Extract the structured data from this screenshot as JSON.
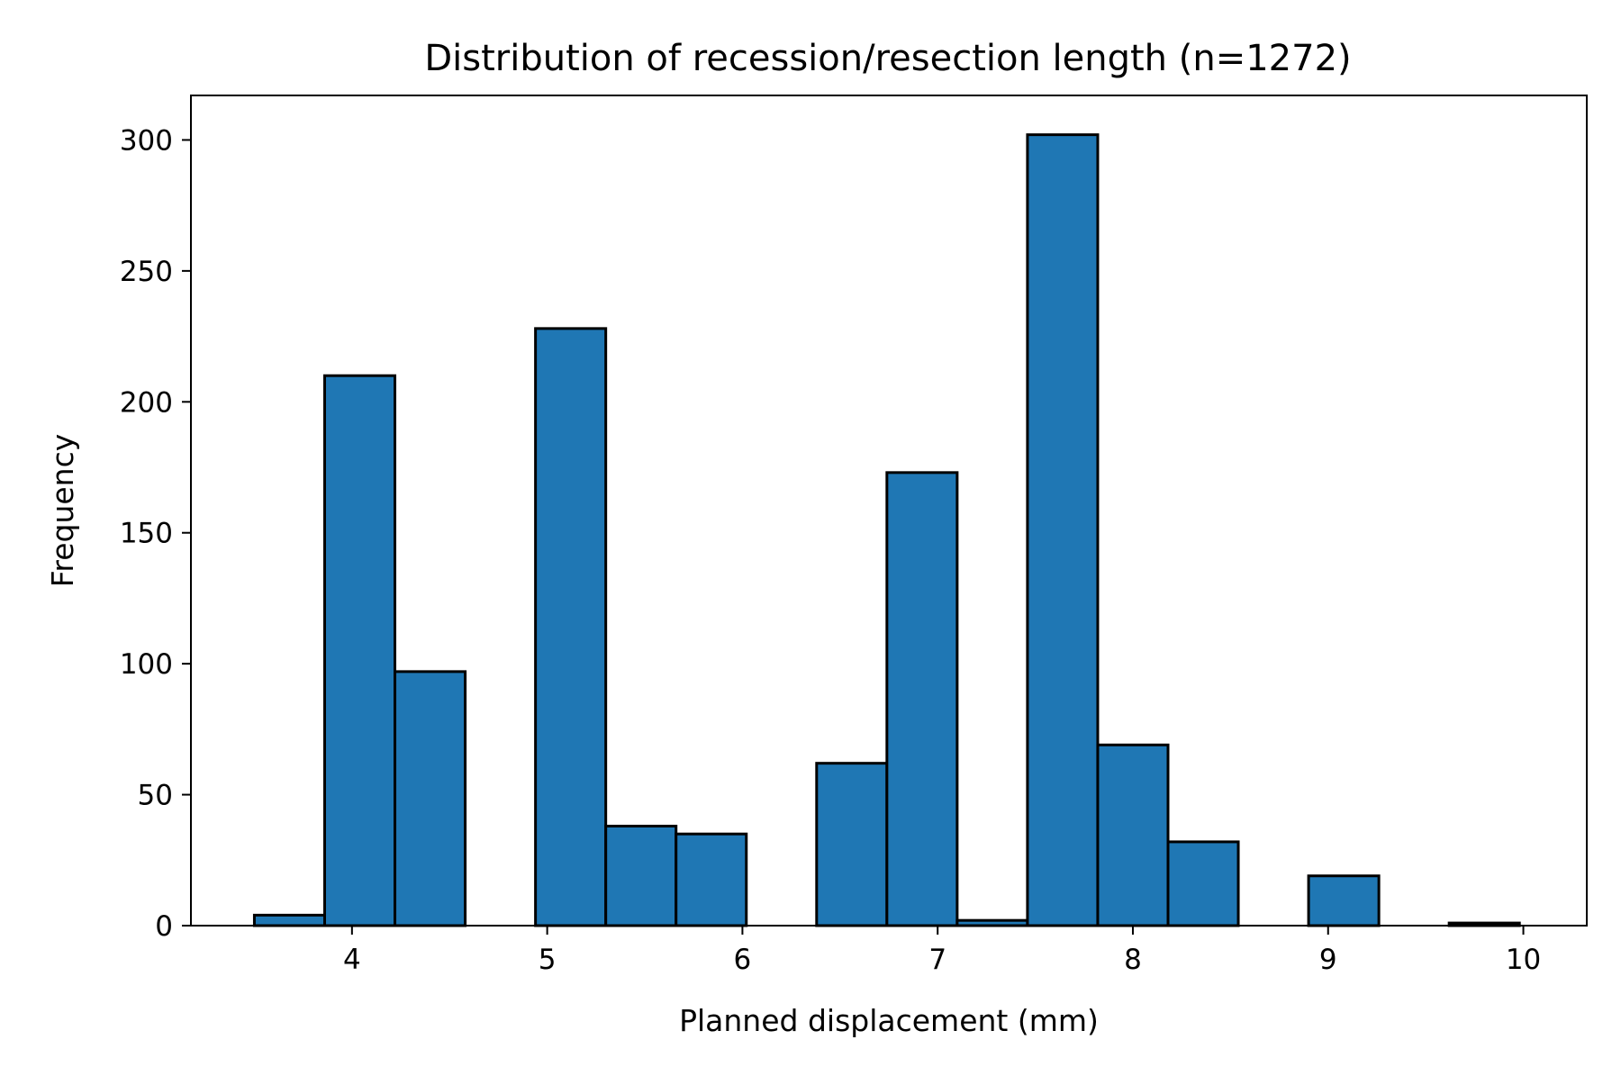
{
  "chart_data": {
    "type": "bar",
    "title": "Distribution of recession/resection length (n=1272)",
    "xlabel": "Planned displacement (mm)",
    "ylabel": "Frequency",
    "xlim": [
      3.175,
      10.325
    ],
    "ylim": [
      0,
      317
    ],
    "grid": false,
    "legend": "none",
    "bar_color": "#1f77b4",
    "edge_color": "#000000",
    "x_ticks": [
      {
        "value": 4,
        "label": "4"
      },
      {
        "value": 5,
        "label": "5"
      },
      {
        "value": 6,
        "label": "6"
      },
      {
        "value": 7,
        "label": "7"
      },
      {
        "value": 8,
        "label": "8"
      },
      {
        "value": 9,
        "label": "9"
      },
      {
        "value": 10,
        "label": "10"
      }
    ],
    "y_ticks": [
      {
        "value": 0,
        "label": "0"
      },
      {
        "value": 50,
        "label": "50"
      },
      {
        "value": 100,
        "label": "100"
      },
      {
        "value": 150,
        "label": "150"
      },
      {
        "value": 200,
        "label": "200"
      },
      {
        "value": 250,
        "label": "250"
      },
      {
        "value": 300,
        "label": "300"
      }
    ],
    "bin_start": 3.5,
    "bin_width": 0.36,
    "values": [
      4,
      210,
      97,
      0,
      228,
      38,
      35,
      0,
      62,
      173,
      2,
      302,
      69,
      32,
      0,
      19,
      0,
      1
    ]
  }
}
